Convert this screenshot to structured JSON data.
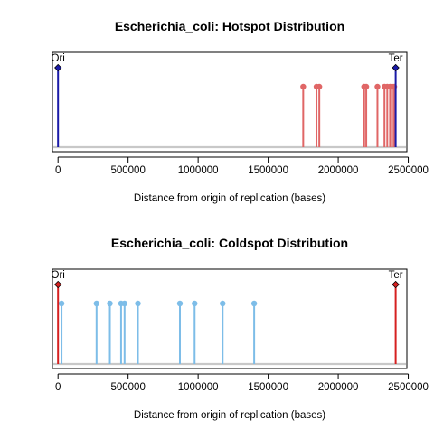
{
  "chart_data": [
    {
      "type": "lollipop",
      "title": "Escherichia_coli: Hotspot Distribution",
      "xlabel": "Distance from origin of replication (bases)",
      "xlim": [
        -40000,
        2490000
      ],
      "xticks": [
        0,
        500000,
        1000000,
        1500000,
        2000000,
        2500000
      ],
      "tick_labels": [
        "0",
        "500000",
        "1000000",
        "1500000",
        "2000000",
        "2500000"
      ],
      "y_axis_shown": false,
      "stem_color": "#e06666",
      "markers": [
        {
          "label": "Ori",
          "x": 0,
          "color": "#1a1aa8"
        },
        {
          "label": "Ter",
          "x": 2410000,
          "color": "#1a1aa8"
        }
      ],
      "points": [
        1750000,
        1845000,
        1865000,
        2185000,
        2200000,
        2280000,
        2330000,
        2350000,
        2370000,
        2385000,
        2400000
      ]
    },
    {
      "type": "lollipop",
      "title": "Escherichia_coli: Coldspot Distribution",
      "xlabel": "Distance from origin of replication (bases)",
      "xlim": [
        -40000,
        2490000
      ],
      "xticks": [
        0,
        500000,
        1000000,
        1500000,
        2000000,
        2500000
      ],
      "tick_labels": [
        "0",
        "500000",
        "1000000",
        "1500000",
        "2000000",
        "2500000"
      ],
      "y_axis_shown": false,
      "stem_color": "#7dbde8",
      "markers": [
        {
          "label": "Ori",
          "x": 0,
          "color": "#d62020"
        },
        {
          "label": "Ter",
          "x": 2410000,
          "color": "#d62020"
        }
      ],
      "points": [
        25000,
        275000,
        370000,
        450000,
        475000,
        570000,
        870000,
        975000,
        1175000,
        1400000
      ]
    }
  ]
}
